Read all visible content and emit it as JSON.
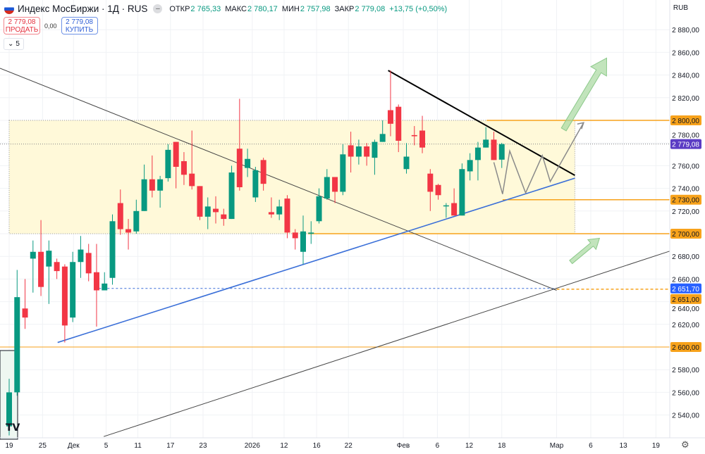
{
  "header": {
    "title": "Индекс МосБиржи · 1Д · RUS",
    "open_label": "ОТКР",
    "open": "2 765,33",
    "high_label": "МАКС",
    "high": "2 780,17",
    "low_label": "МИН",
    "low": "2 757,98",
    "close_label": "ЗАКР",
    "close": "2 779,08",
    "change": "+13,75 (+0,50%)"
  },
  "trade": {
    "sell_price": "2 779,08",
    "sell_label": "ПРОДАТЬ",
    "spread": "0,00",
    "buy_price": "2 779,08",
    "buy_label": "КУПИТЬ"
  },
  "indicators_collapse": "5",
  "currency": "RUB",
  "colors": {
    "up": "#089981",
    "down": "#f23645",
    "zone": "#fff9d9",
    "level": "#f7a21b",
    "trend_blue": "#3a6fd8",
    "current": "#5b3cc4",
    "blue_label": "#2962ff",
    "arrow": "#a8d8a0"
  },
  "chart_data": {
    "type": "candlestick",
    "ylim": [
      2520,
      2895
    ],
    "y_ticks": [
      "2 880,00",
      "2 860,00",
      "2 840,00",
      "2 820,00",
      "2 800,00",
      "2 780,00",
      "2 760,00",
      "2 740,00",
      "2 720,00",
      "2 700,00",
      "2 680,00",
      "2 660,00",
      "2 640,00",
      "2 620,00",
      "2 600,00",
      "2 580,00",
      "2 560,00",
      "2 540,00"
    ],
    "y_tick_values": [
      2880,
      2860,
      2840,
      2820,
      2800,
      2780,
      2760,
      2740,
      2720,
      2700,
      2680,
      2660,
      2640,
      2620,
      2600,
      2580,
      2560,
      2540
    ],
    "x_ticks": [
      {
        "label": "19",
        "bar": 0
      },
      {
        "label": "25",
        "bar": 4.2
      },
      {
        "label": "Дек",
        "bar": 8.1
      },
      {
        "label": "5",
        "bar": 12.2
      },
      {
        "label": "11",
        "bar": 16.2
      },
      {
        "label": "17",
        "bar": 20.3
      },
      {
        "label": "23",
        "bar": 24.4
      },
      {
        "label": "2026",
        "bar": 30.6
      },
      {
        "label": "12",
        "bar": 34.6
      },
      {
        "label": "16",
        "bar": 38.7
      },
      {
        "label": "22",
        "bar": 42.7
      },
      {
        "label": "Фев",
        "bar": 49.6
      },
      {
        "label": "6",
        "bar": 53.9
      },
      {
        "label": "12",
        "bar": 57.9
      },
      {
        "label": "18",
        "bar": 62.0
      },
      {
        "label": "Мар",
        "bar": 68.9
      },
      {
        "label": "6",
        "bar": 73.2
      },
      {
        "label": "13",
        "bar": 77.3
      },
      {
        "label": "19",
        "bar": 81.4
      }
    ],
    "candles": [
      [
        2530,
        2572,
        2522,
        2560
      ],
      [
        2560,
        2668,
        2557,
        2644
      ],
      [
        2634,
        2660,
        2616,
        2626
      ],
      [
        2678,
        2694,
        2648,
        2684
      ],
      [
        2684,
        2712,
        2645,
        2653
      ],
      [
        2671,
        2694,
        2638,
        2685
      ],
      [
        2675,
        2678,
        2660,
        2667
      ],
      [
        2671,
        2673,
        2604,
        2619
      ],
      [
        2626,
        2684,
        2622,
        2675
      ],
      [
        2675,
        2698,
        2661,
        2686
      ],
      [
        2683,
        2691,
        2658,
        2665
      ],
      [
        2666,
        2691,
        2618,
        2650
      ],
      [
        2650,
        2666,
        2650,
        2656
      ],
      [
        2661,
        2717,
        2655,
        2711
      ],
      [
        2727,
        2739,
        2699,
        2704
      ],
      [
        2704,
        2713,
        2686,
        2701
      ],
      [
        2702,
        2730,
        2700,
        2720
      ],
      [
        2720,
        2761,
        2720,
        2748
      ],
      [
        2748,
        2769,
        2732,
        2738
      ],
      [
        2738,
        2751,
        2723,
        2748
      ],
      [
        2749,
        2779,
        2746,
        2774
      ],
      [
        2781,
        2781,
        2740,
        2759
      ],
      [
        2764,
        2772,
        2743,
        2752
      ],
      [
        2753,
        2791,
        2739,
        2742
      ],
      [
        2742,
        2742,
        2712,
        2715
      ],
      [
        2715,
        2732,
        2704,
        2724
      ],
      [
        2722,
        2733,
        2709,
        2719
      ],
      [
        2717,
        2722,
        2707,
        2713
      ],
      [
        2713,
        2760,
        2713,
        2754
      ],
      [
        2775,
        2819,
        2738,
        2741
      ],
      [
        2758,
        2775,
        2750,
        2766
      ],
      [
        2732,
        2759,
        2728,
        2756
      ],
      [
        2765,
        2767,
        2738,
        2744
      ],
      [
        2719,
        2732,
        2714,
        2717
      ],
      [
        2717,
        2730,
        2712,
        2724
      ],
      [
        2731,
        2734,
        2696,
        2701
      ],
      [
        2701,
        2704,
        2686,
        2696
      ],
      [
        2684,
        2716,
        2673,
        2702
      ],
      [
        2700,
        2711,
        2691,
        2701
      ],
      [
        2711,
        2740,
        2709,
        2733
      ],
      [
        2731,
        2757,
        2730,
        2750
      ],
      [
        2750,
        2750,
        2727,
        2737
      ],
      [
        2737,
        2779,
        2734,
        2770
      ],
      [
        2778,
        2790,
        2754,
        2768
      ],
      [
        2768,
        2783,
        2761,
        2777
      ],
      [
        2777,
        2780,
        2760,
        2768
      ],
      [
        2767,
        2783,
        2752,
        2781
      ],
      [
        2781,
        2800,
        2781,
        2788
      ],
      [
        2809,
        2844,
        2786,
        2797
      ],
      [
        2812,
        2814,
        2772,
        2782
      ],
      [
        2757,
        2780,
        2753,
        2768
      ],
      [
        2787,
        2795,
        2778,
        2786
      ],
      [
        2791,
        2804,
        2771,
        2776
      ],
      [
        2753,
        2757,
        2720,
        2737
      ],
      [
        2743,
        2744,
        2730,
        2734
      ],
      [
        2725,
        2727,
        2714,
        2725
      ],
      [
        2727,
        2740,
        2716,
        2716
      ],
      [
        2716,
        2762,
        2716,
        2757
      ],
      [
        2755,
        2771,
        2747,
        2765
      ],
      [
        2765,
        2781,
        2747,
        2776
      ],
      [
        2776,
        2794,
        2776,
        2783
      ],
      [
        2783,
        2790,
        2765,
        2765
      ],
      [
        2765.33,
        2780.17,
        2757.98,
        2779.08
      ]
    ],
    "zone": {
      "from_bar": 0,
      "to_bar": 71.2,
      "top": 2800,
      "bottom": 2700
    },
    "current_price": 2779.08,
    "levels": [
      {
        "price": 2800,
        "from_bar": 60.1,
        "label": "2 800,00"
      },
      {
        "price": 2730,
        "from_bar": 62.1,
        "label": "2 730,00"
      },
      {
        "price": 2700,
        "from_bar": 37.6,
        "label": "2 700,00"
      },
      {
        "price": 2600,
        "from_bar": -1.2,
        "label": "2 600,00"
      },
      {
        "price": 2651,
        "from_bar": 68.9,
        "label": "2 651,00",
        "dashed": true
      }
    ],
    "blue_level": {
      "price": 2651.7,
      "from_bar": 11.3,
      "to_bar": 68.9,
      "label": "2 651,70"
    },
    "current_label": "2 779,08",
    "trendlines": [
      {
        "from": [
          -1.15,
          2846
        ],
        "to": [
          68.9,
          2650
        ],
        "style": "thin"
      },
      {
        "from": [
          11.9,
          2521
        ],
        "to": [
          83.1,
          2684.5
        ],
        "style": "thin"
      },
      {
        "from": [
          6.1,
          2604
        ],
        "to": [
          71.2,
          2749
        ],
        "style": "blue"
      },
      {
        "from": [
          47.7,
          2844
        ],
        "to": [
          71.2,
          2751.5
        ],
        "style": "thick"
      }
    ],
    "projection": [
      [
        61,
        2763
      ],
      [
        62.1,
        2735
      ],
      [
        63,
        2773
      ],
      [
        65,
        2736
      ],
      [
        67.1,
        2769
      ],
      [
        68.1,
        2746
      ],
      [
        72.3,
        2798
      ]
    ],
    "arrows": [
      {
        "from": [
          69.8,
          2792
        ],
        "to": [
          75.2,
          2855
        ]
      },
      {
        "from": [
          70.7,
          2675
        ],
        "to": [
          74.3,
          2696
        ]
      }
    ]
  }
}
